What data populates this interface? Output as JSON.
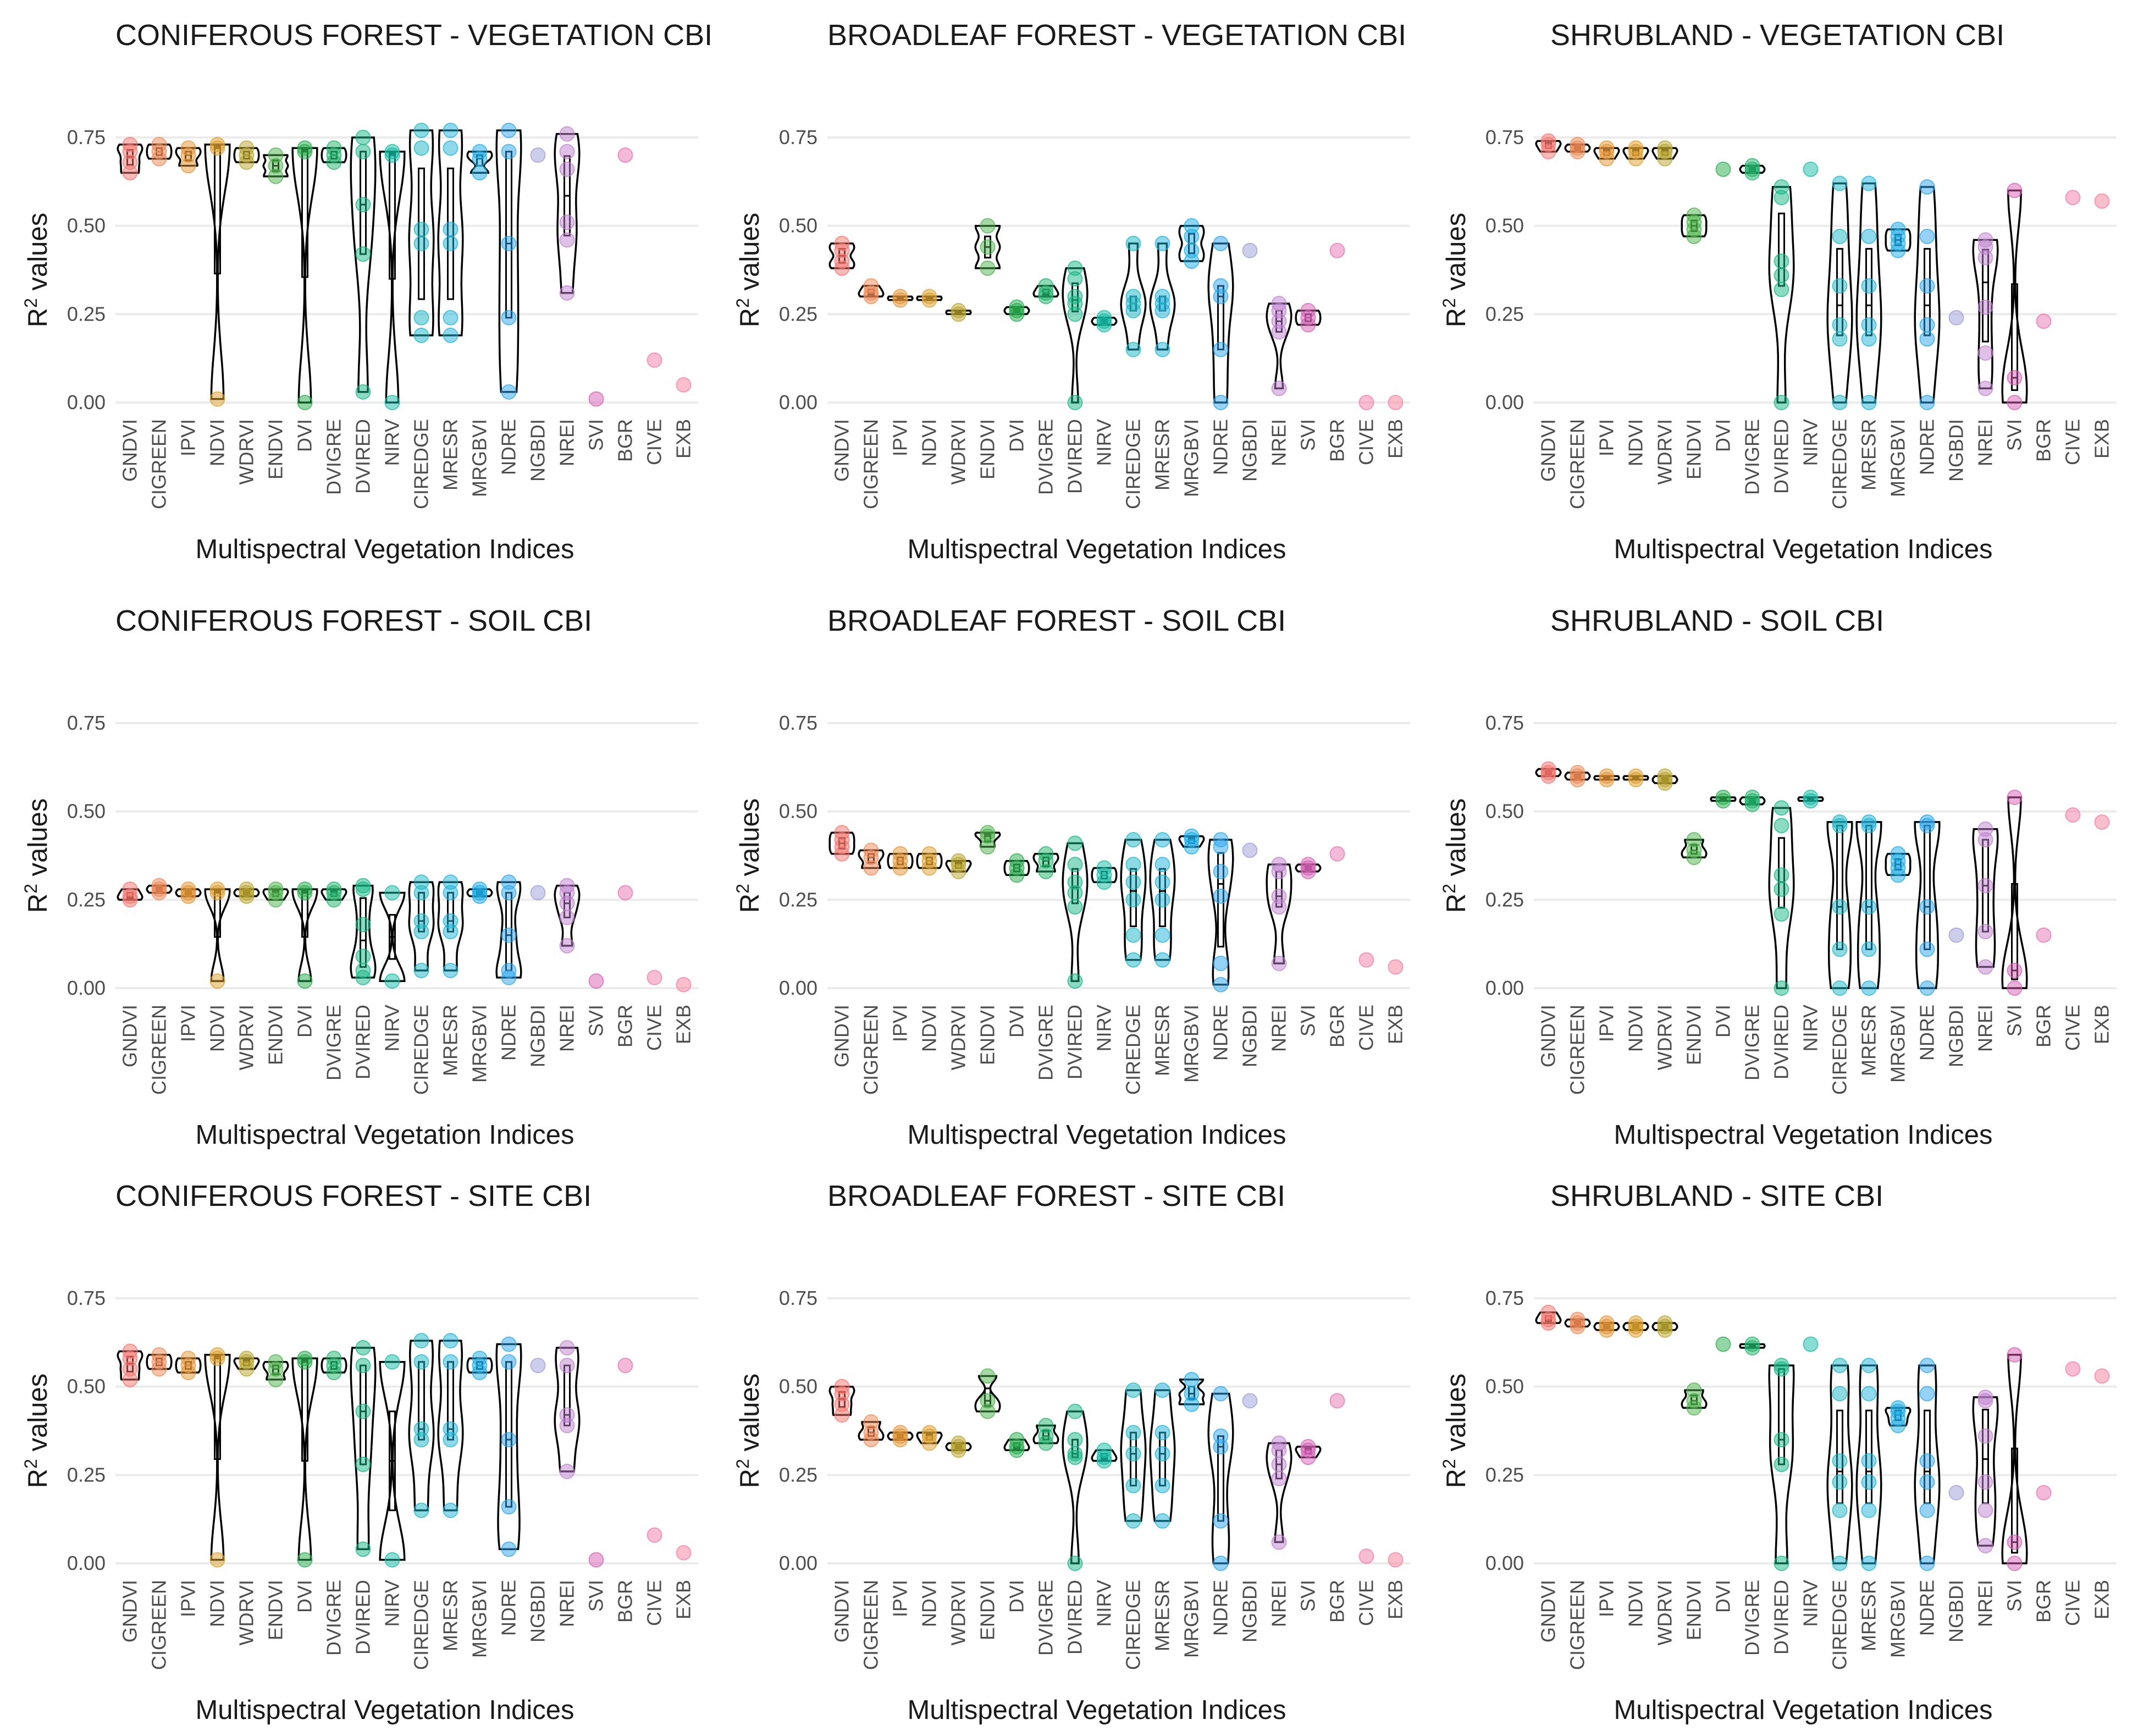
{
  "chart_data": {
    "type": "violin",
    "layout": "3x3 grid",
    "indices": [
      "GNDVI",
      "CIGREEN",
      "IPVI",
      "NDVI",
      "WDRVI",
      "ENDVI",
      "DVI",
      "DVIGRE",
      "DVIRED",
      "NIRV",
      "CIREDGE",
      "MRESR",
      "MRGBVI",
      "NDRE",
      "NGBDI",
      "NREI",
      "SVI",
      "BGR",
      "CIVE",
      "EXB"
    ],
    "colors": [
      "#F8766D",
      "#F08A55",
      "#E69536",
      "#DDA02E",
      "#B9A530",
      "#4DB34C",
      "#27AE4E",
      "#22B36C",
      "#16B886",
      "#14BCA5",
      "#1CB8C6",
      "#20B4DA",
      "#1BAEE8",
      "#2BA6ED",
      "#9C9BDA",
      "#C082CF",
      "#D561B5",
      "#E773B1",
      "#F27BA8",
      "#F87D9C"
    ],
    "yticks": [
      0.0,
      0.25,
      0.5,
      0.75
    ],
    "yticklabels": [
      "0.00",
      "0.25",
      "0.50",
      "0.75"
    ],
    "ylim": [
      -0.03,
      0.83
    ],
    "ylabel": "R² values",
    "ylabel_base": "R",
    "ylabel_sup": "2",
    "ylabel_rest": " values",
    "xlabel": "Multispectral Vegetation Indices",
    "panels": [
      {
        "title": "CONIFEROUS FOREST - VEGETATION CBI",
        "series": [
          [
            0.65,
            0.68,
            0.71,
            0.73
          ],
          [
            0.69,
            0.71,
            0.73
          ],
          [
            0.67,
            0.7,
            0.72
          ],
          [
            0.01,
            0.72,
            0.73
          ],
          [
            0.68,
            0.7,
            0.72
          ],
          [
            0.64,
            0.67,
            0.7
          ],
          [
            0.0,
            0.71,
            0.72
          ],
          [
            0.68,
            0.7,
            0.72
          ],
          [
            0.03,
            0.42,
            0.56,
            0.71,
            0.75
          ],
          [
            0.0,
            0.7,
            0.71
          ],
          [
            0.19,
            0.24,
            0.45,
            0.49,
            0.72,
            0.77
          ],
          [
            0.19,
            0.24,
            0.45,
            0.49,
            0.72,
            0.77
          ],
          [
            0.65,
            0.69,
            0.71
          ],
          [
            0.03,
            0.24,
            0.45,
            0.71,
            0.77
          ],
          [
            0.7
          ],
          [
            0.31,
            0.46,
            0.51,
            0.66,
            0.71,
            0.76
          ],
          [
            0.01
          ],
          [
            0.7
          ],
          [
            0.12
          ],
          [
            0.05
          ]
        ]
      },
      {
        "title": "BROADLEAF FOREST - VEGETATION CBI",
        "series": [
          [
            0.38,
            0.4,
            0.43,
            0.45
          ],
          [
            0.3,
            0.31,
            0.33
          ],
          [
            0.29,
            0.3
          ],
          [
            0.29,
            0.3
          ],
          [
            0.25,
            0.26
          ],
          [
            0.38,
            0.44,
            0.5
          ],
          [
            0.25,
            0.26,
            0.27
          ],
          [
            0.3,
            0.31,
            0.33
          ],
          [
            0.0,
            0.25,
            0.28,
            0.3,
            0.35,
            0.38
          ],
          [
            0.22,
            0.23,
            0.24
          ],
          [
            0.15,
            0.26,
            0.28,
            0.3,
            0.45
          ],
          [
            0.15,
            0.26,
            0.28,
            0.3,
            0.45
          ],
          [
            0.4,
            0.43,
            0.47,
            0.5
          ],
          [
            0.0,
            0.15,
            0.3,
            0.33,
            0.45
          ],
          [
            0.43
          ],
          [
            0.04,
            0.2,
            0.23,
            0.26,
            0.28
          ],
          [
            0.22,
            0.24,
            0.26
          ],
          [
            0.43
          ],
          [
            0.0
          ],
          [
            0.0
          ]
        ]
      },
      {
        "title": "SHRUBLAND - VEGETATION CBI",
        "series": [
          [
            0.71,
            0.73,
            0.74
          ],
          [
            0.71,
            0.72,
            0.73
          ],
          [
            0.69,
            0.71,
            0.72
          ],
          [
            0.69,
            0.71,
            0.72
          ],
          [
            0.69,
            0.71,
            0.72
          ],
          [
            0.47,
            0.49,
            0.51,
            0.53
          ],
          [
            0.66
          ],
          [
            0.65,
            0.66,
            0.67
          ],
          [
            0.0,
            0.32,
            0.36,
            0.4,
            0.58,
            0.61
          ],
          [
            0.66
          ],
          [
            0.0,
            0.18,
            0.22,
            0.33,
            0.47,
            0.62
          ],
          [
            0.0,
            0.18,
            0.22,
            0.33,
            0.47,
            0.62
          ],
          [
            0.43,
            0.45,
            0.47,
            0.49
          ],
          [
            0.0,
            0.18,
            0.22,
            0.33,
            0.47,
            0.61
          ],
          [
            0.24
          ],
          [
            0.04,
            0.14,
            0.27,
            0.41,
            0.44,
            0.46
          ],
          [
            0.0,
            0.07,
            0.6
          ],
          [
            0.23
          ],
          [
            0.58
          ],
          [
            0.57
          ]
        ]
      },
      {
        "title": "CONIFEROUS FOREST - SOIL CBI",
        "series": [
          [
            0.25,
            0.26,
            0.28
          ],
          [
            0.27,
            0.28,
            0.29
          ],
          [
            0.26,
            0.27,
            0.28
          ],
          [
            0.02,
            0.27,
            0.28
          ],
          [
            0.26,
            0.27,
            0.28
          ],
          [
            0.25,
            0.27,
            0.28
          ],
          [
            0.02,
            0.27,
            0.28
          ],
          [
            0.25,
            0.27,
            0.28
          ],
          [
            0.03,
            0.05,
            0.09,
            0.18,
            0.28,
            0.29
          ],
          [
            0.02,
            0.27
          ],
          [
            0.05,
            0.16,
            0.19,
            0.27,
            0.3
          ],
          [
            0.05,
            0.16,
            0.19,
            0.27,
            0.3
          ],
          [
            0.26,
            0.27,
            0.28
          ],
          [
            0.03,
            0.05,
            0.15,
            0.27,
            0.3
          ],
          [
            0.27
          ],
          [
            0.12,
            0.2,
            0.24,
            0.27,
            0.29
          ],
          [
            0.02
          ],
          [
            0.27
          ],
          [
            0.03
          ],
          [
            0.01
          ]
        ]
      },
      {
        "title": "BROADLEAF FOREST - SOIL CBI",
        "series": [
          [
            0.38,
            0.4,
            0.42,
            0.44
          ],
          [
            0.34,
            0.37,
            0.39
          ],
          [
            0.34,
            0.36,
            0.38
          ],
          [
            0.34,
            0.36,
            0.38
          ],
          [
            0.33,
            0.35,
            0.36
          ],
          [
            0.4,
            0.43,
            0.44
          ],
          [
            0.32,
            0.34,
            0.36
          ],
          [
            0.33,
            0.36,
            0.38
          ],
          [
            0.02,
            0.23,
            0.27,
            0.3,
            0.35,
            0.41
          ],
          [
            0.3,
            0.32,
            0.34
          ],
          [
            0.08,
            0.15,
            0.25,
            0.3,
            0.35,
            0.42
          ],
          [
            0.08,
            0.15,
            0.25,
            0.3,
            0.35,
            0.42
          ],
          [
            0.4,
            0.42,
            0.43
          ],
          [
            0.01,
            0.07,
            0.26,
            0.33,
            0.4,
            0.42
          ],
          [
            0.39
          ],
          [
            0.07,
            0.23,
            0.26,
            0.33,
            0.35
          ],
          [
            0.33,
            0.34,
            0.35
          ],
          [
            0.38
          ],
          [
            0.08
          ],
          [
            0.06
          ]
        ]
      },
      {
        "title": "SHRUBLAND - SOIL CBI",
        "series": [
          [
            0.6,
            0.61,
            0.62
          ],
          [
            0.59,
            0.6,
            0.61
          ],
          [
            0.59,
            0.6
          ],
          [
            0.59,
            0.6
          ],
          [
            0.58,
            0.59,
            0.6
          ],
          [
            0.37,
            0.39,
            0.42
          ],
          [
            0.53,
            0.54
          ],
          [
            0.52,
            0.53,
            0.54
          ],
          [
            0.0,
            0.21,
            0.28,
            0.32,
            0.46,
            0.51
          ],
          [
            0.53,
            0.54
          ],
          [
            0.0,
            0.11,
            0.23,
            0.46,
            0.47
          ],
          [
            0.0,
            0.11,
            0.23,
            0.46,
            0.47
          ],
          [
            0.32,
            0.34,
            0.36,
            0.38
          ],
          [
            0.0,
            0.11,
            0.23,
            0.46,
            0.47
          ],
          [
            0.15
          ],
          [
            0.06,
            0.16,
            0.29,
            0.42,
            0.45
          ],
          [
            0.0,
            0.05,
            0.54
          ],
          [
            0.15
          ],
          [
            0.49
          ],
          [
            0.47
          ]
        ]
      },
      {
        "title": "CONIFEROUS FOREST - SITE CBI",
        "series": [
          [
            0.52,
            0.55,
            0.58,
            0.6
          ],
          [
            0.55,
            0.57,
            0.59
          ],
          [
            0.54,
            0.56,
            0.58
          ],
          [
            0.01,
            0.58,
            0.59
          ],
          [
            0.55,
            0.57,
            0.58
          ],
          [
            0.52,
            0.55,
            0.57
          ],
          [
            0.01,
            0.57,
            0.58
          ],
          [
            0.54,
            0.56,
            0.58
          ],
          [
            0.04,
            0.28,
            0.43,
            0.56,
            0.61
          ],
          [
            0.01,
            0.57
          ],
          [
            0.15,
            0.35,
            0.38,
            0.57,
            0.63
          ],
          [
            0.15,
            0.35,
            0.38,
            0.57,
            0.63
          ],
          [
            0.54,
            0.56,
            0.58
          ],
          [
            0.04,
            0.16,
            0.35,
            0.57,
            0.62
          ],
          [
            0.56
          ],
          [
            0.26,
            0.39,
            0.42,
            0.56,
            0.61
          ],
          [
            0.01
          ],
          [
            0.56
          ],
          [
            0.08
          ],
          [
            0.03
          ]
        ]
      },
      {
        "title": "BROADLEAF FOREST - SITE CBI",
        "series": [
          [
            0.42,
            0.45,
            0.48,
            0.5
          ],
          [
            0.35,
            0.37,
            0.4
          ],
          [
            0.35,
            0.36,
            0.37
          ],
          [
            0.34,
            0.36,
            0.37
          ],
          [
            0.32,
            0.33,
            0.34
          ],
          [
            0.43,
            0.46,
            0.53
          ],
          [
            0.32,
            0.33,
            0.35
          ],
          [
            0.34,
            0.36,
            0.39
          ],
          [
            0.0,
            0.3,
            0.31,
            0.35,
            0.43
          ],
          [
            0.29,
            0.3,
            0.32
          ],
          [
            0.12,
            0.22,
            0.31,
            0.37,
            0.49
          ],
          [
            0.12,
            0.22,
            0.31,
            0.37,
            0.49
          ],
          [
            0.45,
            0.48,
            0.52
          ],
          [
            0.0,
            0.12,
            0.33,
            0.36,
            0.48
          ],
          [
            0.46
          ],
          [
            0.06,
            0.24,
            0.28,
            0.32,
            0.34
          ],
          [
            0.3,
            0.32,
            0.33
          ],
          [
            0.46
          ],
          [
            0.02
          ],
          [
            0.01
          ]
        ]
      },
      {
        "title": "SHRUBLAND - SITE CBI",
        "series": [
          [
            0.68,
            0.69,
            0.71
          ],
          [
            0.67,
            0.68,
            0.69
          ],
          [
            0.66,
            0.67,
            0.68
          ],
          [
            0.66,
            0.67,
            0.68
          ],
          [
            0.66,
            0.67,
            0.68
          ],
          [
            0.44,
            0.46,
            0.49
          ],
          [
            0.62
          ],
          [
            0.61,
            0.62
          ],
          [
            0.0,
            0.28,
            0.35,
            0.55,
            0.56
          ],
          [
            0.62
          ],
          [
            0.0,
            0.15,
            0.23,
            0.29,
            0.48,
            0.56
          ],
          [
            0.0,
            0.15,
            0.23,
            0.29,
            0.48,
            0.56
          ],
          [
            0.39,
            0.41,
            0.43,
            0.44
          ],
          [
            0.0,
            0.15,
            0.23,
            0.29,
            0.48,
            0.56
          ],
          [
            0.2
          ],
          [
            0.05,
            0.15,
            0.23,
            0.36,
            0.46,
            0.47
          ],
          [
            0.0,
            0.06,
            0.59
          ],
          [
            0.2
          ],
          [
            0.55
          ],
          [
            0.53
          ]
        ]
      }
    ]
  }
}
